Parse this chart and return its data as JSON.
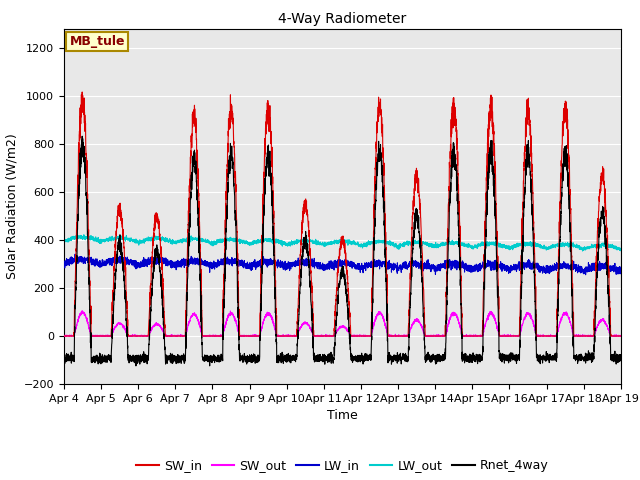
{
  "title": "4-Way Radiometer",
  "xlabel": "Time",
  "ylabel": "Solar Radiation (W/m2)",
  "ylim": [
    -200,
    1280
  ],
  "yticks": [
    -200,
    0,
    200,
    400,
    600,
    800,
    1000,
    1200
  ],
  "xtick_labels": [
    "Apr 4",
    "Apr 5",
    "Apr 6",
    "Apr 7",
    "Apr 8",
    "Apr 9",
    "Apr 10",
    "Apr 11",
    "Apr 12",
    "Apr 13",
    "Apr 14",
    "Apr 15",
    "Apr 16",
    "Apr 17",
    "Apr 18",
    "Apr 19"
  ],
  "annotation_text": "MB_tule",
  "annotation_fg": "#880000",
  "annotation_bg": "#ffffcc",
  "annotation_border": "#aa8800",
  "background_color": "#e8e8e8",
  "colors": {
    "SW_in": "#dd0000",
    "SW_out": "#ff00ff",
    "LW_in": "#0000cc",
    "LW_out": "#00cccc",
    "Rnet_4way": "#000000"
  },
  "num_days": 15,
  "points_per_day": 288
}
